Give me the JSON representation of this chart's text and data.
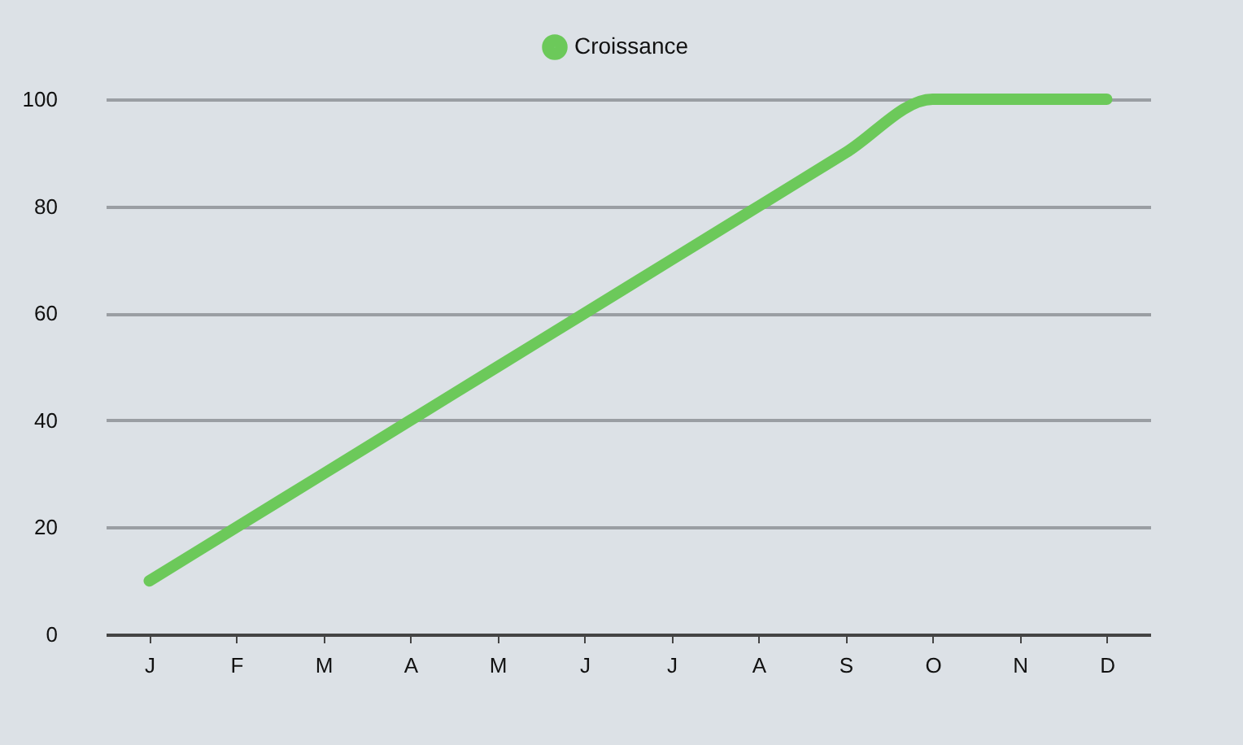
{
  "chart_data": {
    "type": "line",
    "categories": [
      "J",
      "F",
      "M",
      "A",
      "M",
      "J",
      "J",
      "A",
      "S",
      "O",
      "N",
      "D"
    ],
    "series": [
      {
        "name": "Croissance",
        "color": "#6cc95a",
        "values": [
          10,
          20,
          30,
          40,
          50,
          60,
          70,
          80,
          90,
          100,
          100,
          100
        ]
      }
    ],
    "ylim": [
      0,
      100
    ],
    "yticks": [
      0,
      20,
      40,
      60,
      80,
      100
    ],
    "grid": "y",
    "legend": "top",
    "marker": "none",
    "line_style": "solid"
  }
}
